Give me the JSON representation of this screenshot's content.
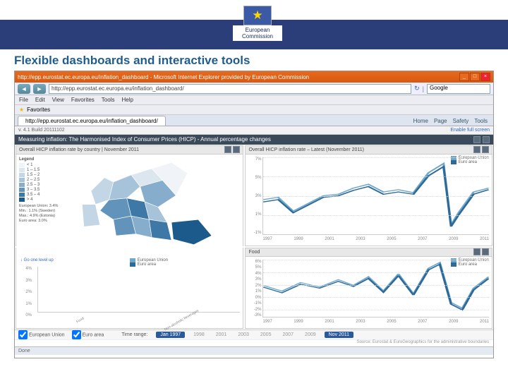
{
  "slide": {
    "title": "Flexible dashboards and interactive tools"
  },
  "logo": {
    "line1": "European",
    "line2": "Commission",
    "stars": "★"
  },
  "browser": {
    "title": "http://epp.eurostat.ec.europa.eu/inflation_dashboard - Microsoft Internet Explorer provided by European Commission",
    "url": "http://epp.eurostat.ec.europa.eu/inflation_dashboard/",
    "search": "Google",
    "menu": [
      "File",
      "Edit",
      "View",
      "Favorites",
      "Tools",
      "Help"
    ],
    "fav": "Favorites",
    "tab": "http://epp.eurostat.ec.europa.eu/inflation_dashboard/",
    "tabtools": [
      "Home",
      "Page",
      "Safety",
      "Tools"
    ]
  },
  "version": {
    "text": "v. 4.1  Build 20111102",
    "link": "Enable full screen"
  },
  "header": {
    "text": "Measuring inflation: The Harmonised Index of Consumer Prices (HICP) - Annual percentage changes"
  },
  "panels": {
    "map": {
      "title": "Overall HICP inflation rate by country | November 2011",
      "legend_title": "Legend",
      "bins": [
        {
          "label": "< 1",
          "color": "#f0f4f8"
        },
        {
          "label": "1 – 1.5",
          "color": "#dbe6ef"
        },
        {
          "label": "1.5 – 2",
          "color": "#c3d6e5"
        },
        {
          "label": "2 – 2.5",
          "color": "#a7c3d9"
        },
        {
          "label": "2.5 – 3",
          "color": "#86adcb"
        },
        {
          "label": "3 – 3.5",
          "color": "#6294bb"
        },
        {
          "label": "3.5 – 4",
          "color": "#3e78a6"
        },
        {
          "label": "> 4",
          "color": "#1d5a8c"
        }
      ],
      "eu_text": "European Union: 3.4%",
      "min_text": "Min.: 1.1% (Sweden)",
      "max_text": "Max.: 4.9% (Estonia)",
      "ea_text": "Euro area: 3.0%"
    },
    "tl": {
      "title": "Overall HICP inflation rate – Latest (November 2011)",
      "series": [
        {
          "label": "European Union",
          "color": "#6fa8c8"
        },
        {
          "label": "Euro area",
          "color": "#2d6a9a"
        }
      ],
      "yticks": [
        "7%",
        "5%",
        "3%",
        "1%",
        "-1%"
      ],
      "xticks": [
        "1997",
        "1999",
        "2001",
        "2003",
        "2005",
        "2007",
        "2009",
        "2011"
      ],
      "line1": "0,55 8,52 16,70 24,60 32,50 40,48 48,40 56,35 64,45 72,42 80,46 88,20 96,8 100,88 104,72 112,45 120,40",
      "line2": "0,58 8,55 16,72 24,62 32,52 40,50 48,43 56,38 64,48 72,45 80,48 88,24 96,12 100,90 104,75 112,48 120,42"
    },
    "bar": {
      "title": "Breakdown of Food & non-alcoholic beverages | by Main Heading | November 2011",
      "subtitle": "↓ Go one level up",
      "yticks": [
        "4%",
        "3%",
        "2%",
        "1%",
        "0%"
      ],
      "cats": [
        "Food",
        "Non-alcoholic beverages"
      ],
      "series": [
        {
          "label": "European Union",
          "color": "#6fa8c8"
        },
        {
          "label": "Euro area",
          "color": "#2d6a9a"
        }
      ],
      "vals": [
        [
          3.6,
          3.2
        ],
        [
          3.0,
          2.3
        ]
      ]
    },
    "tr": {
      "title": "Food",
      "series": [
        {
          "label": "European Union",
          "color": "#6fa8c8"
        },
        {
          "label": "Euro area",
          "color": "#2d6a9a"
        }
      ],
      "yticks": [
        "6%",
        "5%",
        "4%",
        "3%",
        "2%",
        "1%",
        "0%",
        "-1%",
        "-2%",
        "-3%"
      ],
      "xticks": [
        "1997",
        "1999",
        "2001",
        "2003",
        "2005",
        "2007",
        "2009",
        "2011"
      ],
      "line1": "0,45 10,55 20,40 30,48 40,35 48,45 56,30 64,55 72,25 80,60 88,15 94,5 100,75 106,85 112,50 120,30",
      "line2": "0,48 10,58 20,43 30,50 40,38 48,47 56,33 64,57 72,28 80,62 88,18 94,8 100,78 106,88 112,53 120,33"
    }
  },
  "bottom": {
    "chk1": "European Union",
    "chk2": "Euro area",
    "trlabel": "Time range:",
    "from": "Jan 1997",
    "years": [
      "1998",
      "2001",
      "2003",
      "2005",
      "2007",
      "2009"
    ],
    "to": "Nov 2011",
    "source": "Source: Eurostat & EuroGeographics for the administrative boundaries"
  },
  "status": "Done"
}
